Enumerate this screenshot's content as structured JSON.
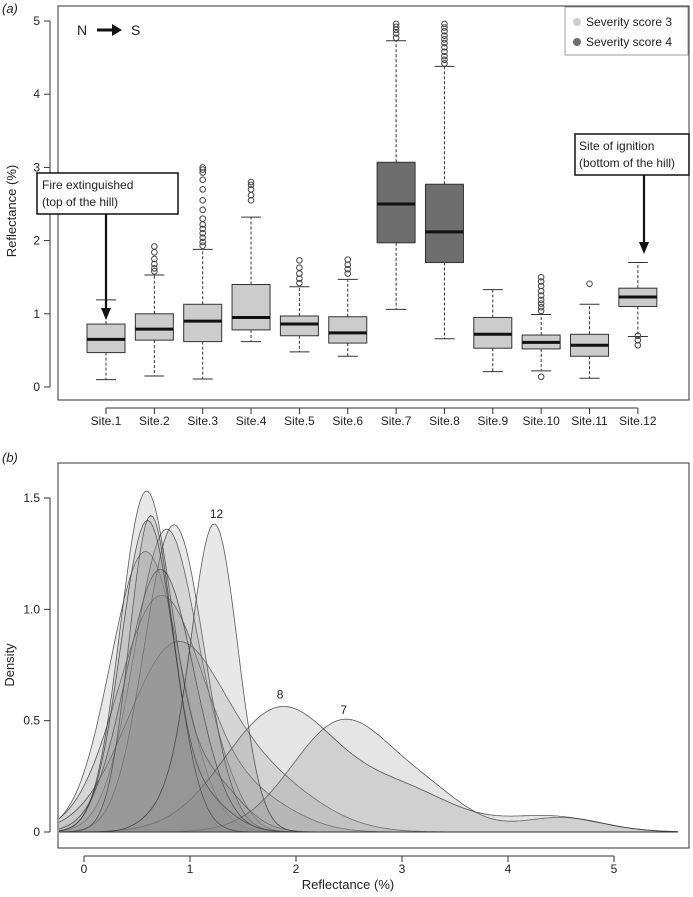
{
  "chart_data": [
    {
      "type": "box",
      "panel_label": "(a)",
      "direction_from": "N",
      "direction_to": "S",
      "ylabel": "Reflectance (%)",
      "xlabel": "",
      "ylim": [
        0,
        5
      ],
      "yticks": [
        0,
        1,
        2,
        3,
        4,
        5
      ],
      "grid": false,
      "legend": {
        "placement": "top-right",
        "entries": [
          {
            "label": "Severity score 3",
            "color": "#cccccc"
          },
          {
            "label": "Severity score 4",
            "color": "#6e6e6e"
          }
        ]
      },
      "annotations": [
        {
          "category": "Site.1",
          "line1": "Fire extinguished",
          "line2": "(top of the hill)"
        },
        {
          "category": "Site.12",
          "line1": "Site of ignition",
          "line2": "(bottom of the hill)"
        }
      ],
      "categories": [
        "Site.1",
        "Site.2",
        "Site.3",
        "Site.4",
        "Site.5",
        "Site.6",
        "Site.7",
        "Site.8",
        "Site.9",
        "Site.10",
        "Site.11",
        "Site.12"
      ],
      "boxes": [
        {
          "site": "Site.1",
          "severity": 3,
          "whisker_low": 0.1,
          "q1": 0.47,
          "median": 0.65,
          "q3": 0.86,
          "whisker_high": 1.19,
          "outliers": []
        },
        {
          "site": "Site.2",
          "severity": 3,
          "whisker_low": 0.15,
          "q1": 0.64,
          "median": 0.79,
          "q3": 1.0,
          "whisker_high": 1.53,
          "outliers": [
            1.58,
            1.62,
            1.68,
            1.75,
            1.84,
            1.92
          ]
        },
        {
          "site": "Site.3",
          "severity": 3,
          "whisker_low": 0.11,
          "q1": 0.62,
          "median": 0.9,
          "q3": 1.13,
          "whisker_high": 1.88,
          "outliers": [
            1.93,
            1.98,
            2.04,
            2.1,
            2.16,
            2.22,
            2.3,
            2.42,
            2.55,
            2.7,
            2.83,
            2.93,
            2.97,
            3.0
          ]
        },
        {
          "site": "Site.4",
          "severity": 3,
          "whisker_low": 0.62,
          "q1": 0.78,
          "median": 0.95,
          "q3": 1.4,
          "whisker_high": 2.32,
          "outliers": [
            2.55,
            2.62,
            2.7,
            2.76,
            2.8
          ]
        },
        {
          "site": "Site.5",
          "severity": 3,
          "whisker_low": 0.48,
          "q1": 0.7,
          "median": 0.86,
          "q3": 0.97,
          "whisker_high": 1.37,
          "outliers": [
            1.42,
            1.48,
            1.55,
            1.63,
            1.73
          ]
        },
        {
          "site": "Site.6",
          "severity": 3,
          "whisker_low": 0.42,
          "q1": 0.6,
          "median": 0.74,
          "q3": 0.96,
          "whisker_high": 1.47,
          "outliers": [
            1.55,
            1.61,
            1.67,
            1.74
          ]
        },
        {
          "site": "Site.7",
          "severity": 4,
          "whisker_low": 1.06,
          "q1": 1.97,
          "median": 2.5,
          "q3": 3.07,
          "whisker_high": 4.73,
          "outliers": [
            4.77,
            4.83,
            4.88,
            4.92,
            4.96
          ]
        },
        {
          "site": "Site.8",
          "severity": 4,
          "whisker_low": 0.66,
          "q1": 1.7,
          "median": 2.12,
          "q3": 2.77,
          "whisker_high": 4.38,
          "outliers": [
            4.42,
            4.47,
            4.52,
            4.58,
            4.64,
            4.7,
            4.75,
            4.8,
            4.86,
            4.91,
            4.96
          ]
        },
        {
          "site": "Site.9",
          "severity": 3,
          "whisker_low": 0.21,
          "q1": 0.53,
          "median": 0.72,
          "q3": 0.95,
          "whisker_high": 1.33,
          "outliers": []
        },
        {
          "site": "Site.10",
          "severity": 3,
          "whisker_low": 0.22,
          "q1": 0.52,
          "median": 0.61,
          "q3": 0.71,
          "whisker_high": 0.99,
          "outliers": [
            0.14,
            1.04,
            1.09,
            1.14,
            1.19,
            1.25,
            1.31,
            1.38,
            1.44,
            1.5
          ]
        },
        {
          "site": "Site.11",
          "severity": 3,
          "whisker_low": 0.12,
          "q1": 0.42,
          "median": 0.57,
          "q3": 0.72,
          "whisker_high": 1.13,
          "outliers": [
            1.41
          ]
        },
        {
          "site": "Site.12",
          "severity": 3,
          "whisker_low": 0.69,
          "q1": 1.1,
          "median": 1.23,
          "q3": 1.35,
          "whisker_high": 1.7,
          "outliers": [
            0.57,
            0.64,
            0.7
          ]
        }
      ]
    },
    {
      "type": "area",
      "panel_label": "(b)",
      "xlabel": "Reflectance (%)",
      "ylabel": "Density",
      "xlim": [
        -0.25,
        5.6
      ],
      "ylim": [
        0,
        1.65
      ],
      "xticks": [
        0,
        1,
        2,
        3,
        4,
        5
      ],
      "yticks": [
        0,
        0.5,
        1.0,
        1.5
      ],
      "ytick_labels": [
        "0",
        "0.5",
        "1.0",
        "1.5"
      ],
      "grid": false,
      "curve_labels": [
        {
          "text": "12",
          "x": 1.25,
          "y": 1.41
        },
        {
          "text": "8",
          "x": 1.85,
          "y": 0.6
        },
        {
          "text": "7",
          "x": 2.45,
          "y": 0.53
        }
      ],
      "series": [
        {
          "site": "Site.1",
          "components": [
            [
              0.58,
              0.33,
              1.26
            ]
          ]
        },
        {
          "site": "Site.2",
          "components": [
            [
              0.78,
              0.3,
              1.36
            ],
            [
              1.35,
              0.18,
              0.1
            ]
          ]
        },
        {
          "site": "Site.3",
          "components": [
            [
              0.72,
              0.4,
              1.05
            ],
            [
              1.6,
              0.4,
              0.14
            ]
          ]
        },
        {
          "site": "Site.4",
          "components": [
            [
              0.85,
              0.45,
              0.8
            ],
            [
              1.7,
              0.5,
              0.22
            ]
          ]
        },
        {
          "site": "Site.5",
          "components": [
            [
              0.85,
              0.28,
              1.38
            ]
          ]
        },
        {
          "site": "Site.6",
          "components": [
            [
              0.58,
              0.24,
              1.49
            ],
            [
              1.15,
              0.3,
              0.25
            ]
          ]
        },
        {
          "site": "Site.7",
          "components": [
            [
              2.45,
              0.48,
              0.5
            ],
            [
              3.3,
              0.35,
              0.12
            ],
            [
              4.5,
              0.4,
              0.065
            ]
          ]
        },
        {
          "site": "Site.8",
          "components": [
            [
              1.85,
              0.52,
              0.55
            ],
            [
              3.0,
              0.5,
              0.18
            ],
            [
              4.4,
              0.45,
              0.07
            ]
          ]
        },
        {
          "site": "Site.9",
          "components": [
            [
              0.72,
              0.32,
              1.18
            ]
          ]
        },
        {
          "site": "Site.10",
          "components": [
            [
              0.62,
              0.2,
              1.33
            ],
            [
              1.0,
              0.3,
              0.2
            ]
          ]
        },
        {
          "site": "Site.11",
          "components": [
            [
              0.6,
              0.25,
              1.4
            ]
          ]
        },
        {
          "site": "Site.12",
          "components": [
            [
              1.23,
              0.22,
              1.38
            ],
            [
              0.75,
              0.2,
              0.08
            ]
          ]
        }
      ]
    }
  ]
}
